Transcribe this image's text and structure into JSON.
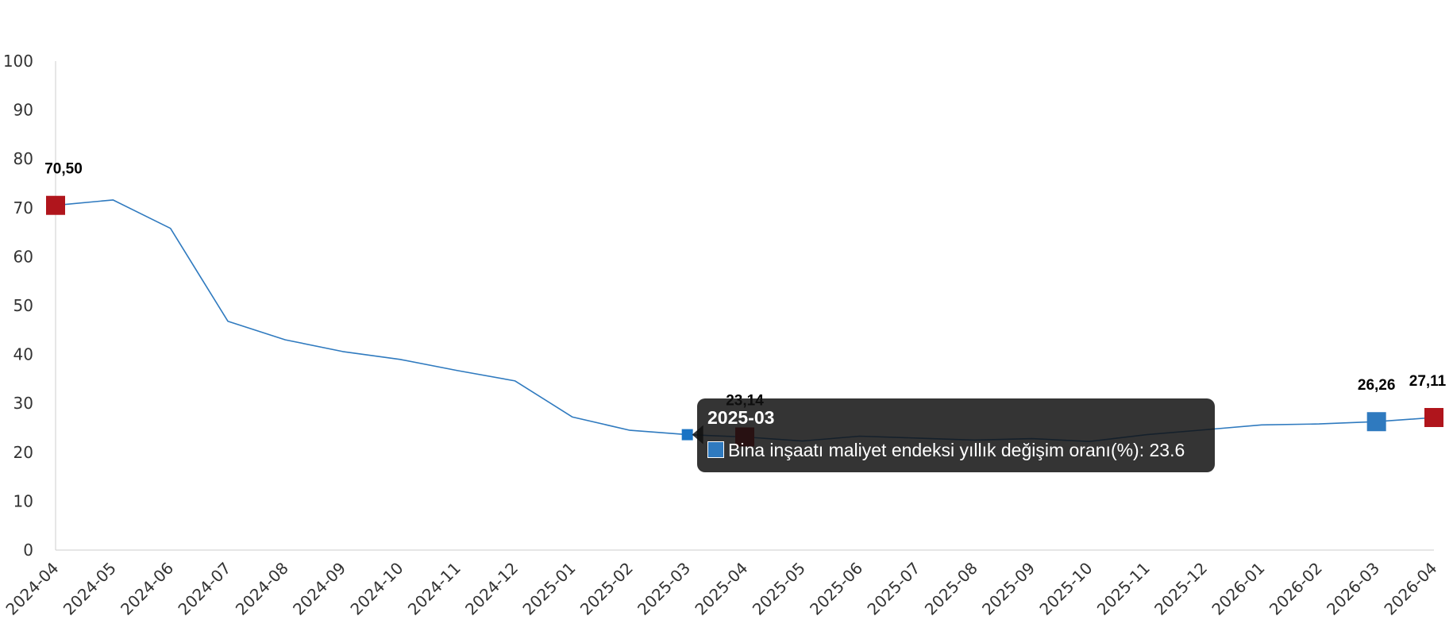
{
  "chart_data": {
    "type": "line",
    "categories": [
      "2024-04",
      "2024-05",
      "2024-06",
      "2024-07",
      "2024-08",
      "2024-09",
      "2024-10",
      "2024-11",
      "2024-12",
      "2025-01",
      "2025-02",
      "2025-03",
      "2025-04",
      "2025-05",
      "2025-06",
      "2025-07",
      "2025-08",
      "2025-09",
      "2025-10",
      "2025-11",
      "2025-12",
      "2026-01",
      "2026-02",
      "2026-03",
      "2026-04"
    ],
    "series": [
      {
        "name": "Bina inşaatı maliyet endeksi yıllık değişim oranı(%)",
        "values": [
          70.5,
          71.6,
          65.8,
          46.8,
          43.0,
          40.6,
          39.0,
          36.7,
          34.6,
          27.2,
          24.5,
          23.6,
          23.14,
          22.3,
          23.3,
          22.9,
          22.5,
          22.8,
          22.2,
          23.6,
          24.6,
          25.6,
          25.8,
          26.26,
          27.11
        ]
      }
    ],
    "ylim": [
      0,
      100
    ],
    "yticks": [
      0,
      10,
      20,
      30,
      40,
      50,
      60,
      70,
      80,
      90,
      100
    ],
    "grid": false,
    "line_color": "#2f7abf",
    "highlight_points": [
      {
        "index": 0,
        "label": "70,50",
        "color": "#b0151c"
      },
      {
        "index": 12,
        "label": "23,14",
        "color": "#b0151c"
      },
      {
        "index": 23,
        "label": "26,26",
        "color": "#2f7abf"
      },
      {
        "index": 24,
        "label": "27,11",
        "color": "#b0151c"
      }
    ],
    "hover_index": 11
  },
  "tooltip": {
    "title": "2025-03",
    "series_label": "Bina inşaatı maliyet endeksi yıllık değişim oranı(%)",
    "value": "23.6",
    "row_text": "Bina inşaatı maliyet endeksi yıllık değişim oranı(%): 23.6",
    "swatch_color": "#2f7abf"
  }
}
